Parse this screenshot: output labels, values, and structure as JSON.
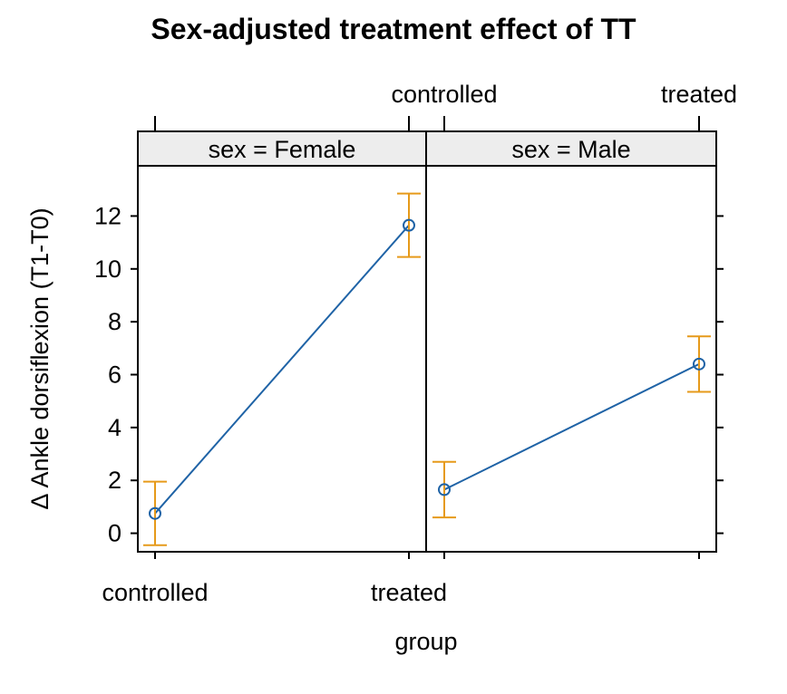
{
  "chart_data": {
    "type": "line",
    "title": "Sex-adjusted treatment effect of TT",
    "xlabel": "group",
    "ylabel": "Δ Ankle dorsiflexion (T1-T0)",
    "categories": [
      "controlled",
      "treated"
    ],
    "ylim": [
      -0.7,
      13.9
    ],
    "yticks": [
      0,
      2,
      4,
      6,
      8,
      10,
      12
    ],
    "line_color": "#1F63A6",
    "errorbar_color": "#E69A1A",
    "strip_color": "#EDEDED",
    "panels": [
      {
        "strip_label": "sex = Female",
        "values": [
          0.75,
          11.65
        ],
        "lower": [
          -0.45,
          10.45
        ],
        "upper": [
          1.95,
          12.85
        ]
      },
      {
        "strip_label": "sex = Male",
        "values": [
          1.65,
          6.4
        ],
        "lower": [
          0.6,
          5.35
        ],
        "upper": [
          2.7,
          7.45
        ]
      }
    ]
  }
}
